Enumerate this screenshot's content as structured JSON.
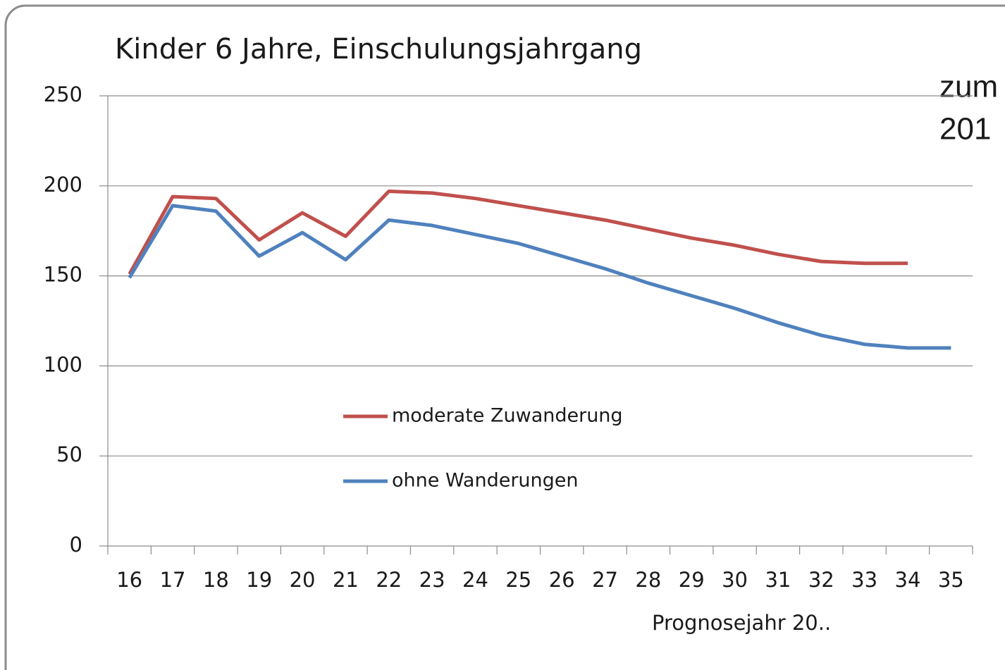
{
  "chart_data": {
    "type": "line",
    "title": "Kinder 6 Jahre, Einschulungsjahrgang",
    "x_label": "Prognosejahr 20..",
    "annotations": [
      "zum",
      "201"
    ],
    "categories": [
      "16",
      "17",
      "18",
      "19",
      "20",
      "21",
      "22",
      "23",
      "24",
      "25",
      "26",
      "27",
      "28",
      "29",
      "30",
      "31",
      "32",
      "33",
      "34",
      "35"
    ],
    "series": [
      {
        "name": "moderate Zuwanderung",
        "color": "#c0504d",
        "values": [
          151,
          194,
          193,
          170,
          185,
          172,
          197,
          196,
          193,
          189,
          185,
          181,
          176,
          171,
          167,
          162,
          158,
          157,
          157,
          null
        ]
      },
      {
        "name": "ohne Wanderungen",
        "color": "#4f81bd",
        "values": [
          149,
          189,
          186,
          161,
          174,
          159,
          181,
          178,
          173,
          168,
          161,
          154,
          146,
          139,
          132,
          124,
          117,
          112,
          110,
          110
        ]
      }
    ],
    "ylim": [
      0,
      250
    ],
    "yticks": [
      0,
      50,
      100,
      150,
      200,
      250
    ],
    "grid": true,
    "legend": "center"
  }
}
